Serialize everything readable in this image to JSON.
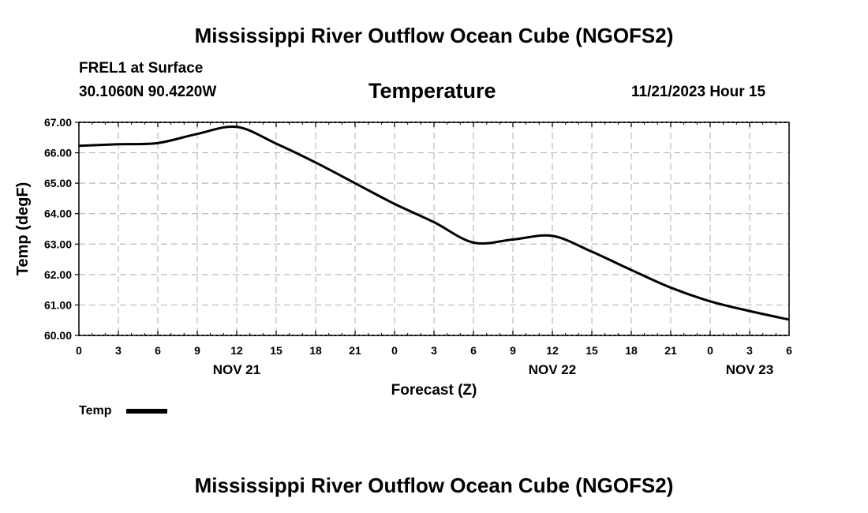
{
  "header": {
    "title": "Mississippi River Outflow Ocean Cube (NGOFS2)",
    "station": "FREL1 at Surface",
    "coords": "30.1060N  90.4220W",
    "timestamp": "11/21/2023 Hour 15"
  },
  "footer": {
    "title": "Mississippi River Outflow Ocean Cube (NGOFS2)"
  },
  "chart_data": {
    "type": "line",
    "title": "Temperature",
    "xlabel": "Forecast (Z)",
    "ylabel": "Temp (degF)",
    "xlim": [
      0,
      54
    ],
    "ylim": [
      60,
      67
    ],
    "grid": true,
    "x_tick_labels": [
      "0",
      "3",
      "6",
      "9",
      "12",
      "15",
      "18",
      "21",
      "0",
      "3",
      "6",
      "9",
      "12",
      "15",
      "18",
      "21",
      "0",
      "3",
      "6"
    ],
    "y_tick_labels": [
      "67.00",
      "66.00",
      "65.00",
      "64.00",
      "63.00",
      "62.00",
      "61.00",
      "60.00"
    ],
    "date_labels": [
      {
        "label": "NOV 21",
        "hour": 12
      },
      {
        "label": "NOV 22",
        "hour": 36
      },
      {
        "label": "NOV 23",
        "hour": 51
      }
    ],
    "legend": {
      "label": "Temp",
      "placement": "bottom-left"
    },
    "series": [
      {
        "name": "Temp",
        "color": "#000000",
        "x": [
          0,
          3,
          6,
          9,
          12,
          15,
          18,
          21,
          24,
          27,
          30,
          33,
          36,
          39,
          42,
          45,
          48,
          51,
          54
        ],
        "values": [
          66.23,
          66.28,
          66.32,
          66.62,
          66.85,
          66.3,
          65.68,
          65.0,
          64.32,
          63.72,
          63.05,
          63.15,
          63.27,
          62.75,
          62.15,
          61.57,
          61.12,
          60.8,
          60.52
        ]
      }
    ]
  }
}
